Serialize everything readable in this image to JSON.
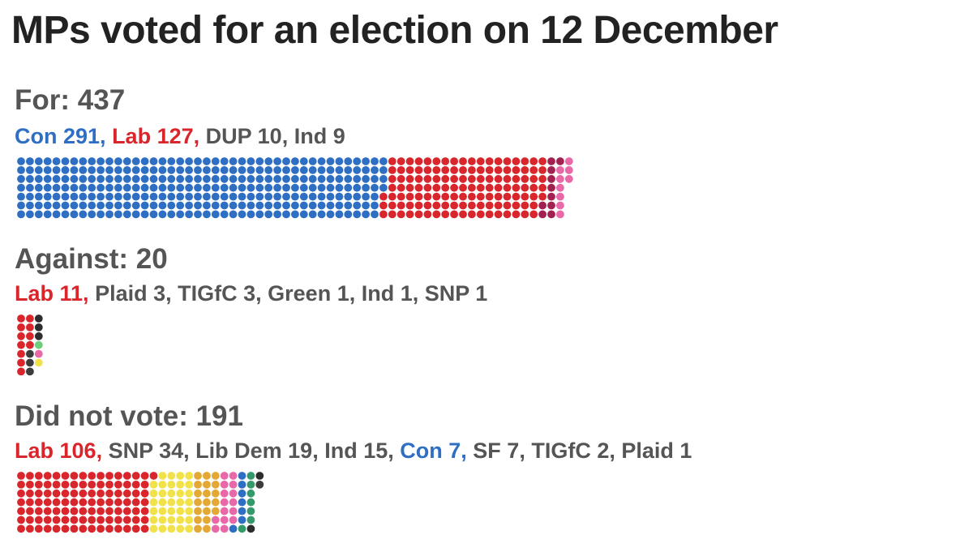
{
  "title": "MPs voted for an election on 12 December",
  "colors": {
    "Con": "#2e6fc4",
    "Lab": "#d8262c",
    "DUP": "#a2214f",
    "Ind": "#e868a8",
    "Plaid": "#3c3c3c",
    "TIGfC": "#2d2d2d",
    "Green": "#6ecf7a",
    "SNP": "#f2e24a",
    "LibDem": "#e4a934",
    "SF": "#359a6a",
    "label_default": "#555555"
  },
  "chart_data": [
    {
      "type": "waffle",
      "heading": "For: 437",
      "total": 437,
      "breakdown": [
        {
          "party": "Con",
          "label": "Con 291",
          "value": 291,
          "color_key": "Con",
          "label_colored": true
        },
        {
          "party": "Lab",
          "label": "Lab 127",
          "value": 127,
          "color_key": "Lab",
          "label_colored": true
        },
        {
          "party": "DUP",
          "label": "DUP 10",
          "value": 10,
          "color_key": "DUP",
          "label_colored": false
        },
        {
          "party": "Ind",
          "label": "Ind 9",
          "value": 9,
          "color_key": "Ind",
          "label_colored": false
        }
      ]
    },
    {
      "type": "waffle",
      "heading": "Against: 20",
      "total": 20,
      "breakdown": [
        {
          "party": "Lab",
          "label": "Lab 11",
          "value": 11,
          "color_key": "Lab",
          "label_colored": true
        },
        {
          "party": "Plaid",
          "label": "Plaid 3",
          "value": 3,
          "color_key": "Plaid",
          "label_colored": false
        },
        {
          "party": "TIGfC",
          "label": "TIGfC 3",
          "value": 3,
          "color_key": "TIGfC",
          "label_colored": false
        },
        {
          "party": "Green",
          "label": "Green 1",
          "value": 1,
          "color_key": "Green",
          "label_colored": false
        },
        {
          "party": "Ind",
          "label": "Ind 1",
          "value": 1,
          "color_key": "Ind",
          "label_colored": false
        },
        {
          "party": "SNP",
          "label": "SNP 1",
          "value": 1,
          "color_key": "SNP",
          "label_colored": false
        }
      ]
    },
    {
      "type": "waffle",
      "heading": "Did not vote: 191",
      "total": 191,
      "breakdown": [
        {
          "party": "Lab",
          "label": "Lab 106",
          "value": 106,
          "color_key": "Lab",
          "label_colored": true
        },
        {
          "party": "SNP",
          "label": "SNP 34",
          "value": 34,
          "color_key": "SNP",
          "label_colored": false
        },
        {
          "party": "Lib Dem",
          "label": "Lib Dem 19",
          "value": 19,
          "color_key": "LibDem",
          "label_colored": false
        },
        {
          "party": "Ind",
          "label": "Ind 15",
          "value": 15,
          "color_key": "Ind",
          "label_colored": false
        },
        {
          "party": "Con",
          "label": "Con 7",
          "value": 7,
          "color_key": "Con",
          "label_colored": true
        },
        {
          "party": "SF",
          "label": "SF 7",
          "value": 7,
          "color_key": "SF",
          "label_colored": false
        },
        {
          "party": "TIGfC",
          "label": "TIGfC 2",
          "value": 2,
          "color_key": "TIGfC",
          "label_colored": false
        },
        {
          "party": "Plaid",
          "label": "Plaid 1",
          "value": 1,
          "color_key": "Plaid",
          "label_colored": false
        }
      ]
    }
  ]
}
